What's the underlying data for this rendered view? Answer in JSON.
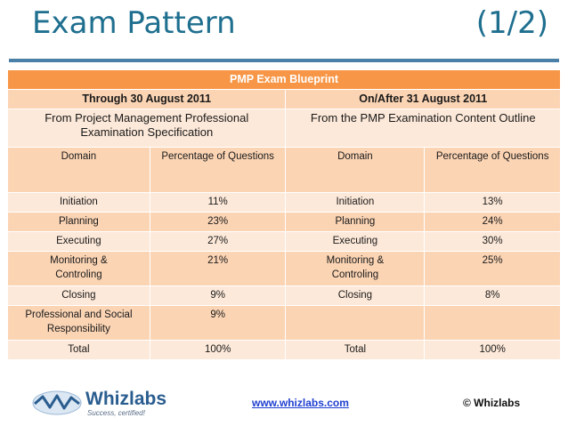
{
  "slide": {
    "title": "Exam Pattern",
    "page_indicator": "(1/2)"
  },
  "table": {
    "caption": "PMP Exam Blueprint",
    "periods": [
      "Through 30 August 2011",
      "On/After 31 August 2011"
    ],
    "sources": [
      "From Project Management Professional Examination Specification",
      "From the PMP Examination Content Outline"
    ],
    "headers": {
      "domain": "Domain",
      "percentage": "Percentage of Questions"
    },
    "rows": [
      {
        "old_domain": "Initiation",
        "old_pct": "11%",
        "new_domain": "Initiation",
        "new_pct": "13%"
      },
      {
        "old_domain": "Planning",
        "old_pct": "23%",
        "new_domain": "Planning",
        "new_pct": "24%"
      },
      {
        "old_domain": "Executing",
        "old_pct": "27%",
        "new_domain": "Executing",
        "new_pct": "30%"
      },
      {
        "old_domain": "Monitoring & Controling",
        "old_pct": "21%",
        "new_domain": "Monitoring & Controling",
        "new_pct": "25%"
      },
      {
        "old_domain": "Closing",
        "old_pct": "9%",
        "new_domain": "Closing",
        "new_pct": "8%"
      },
      {
        "old_domain": "Professional and Social Responsibility",
        "old_pct": "9%",
        "new_domain": "",
        "new_pct": ""
      },
      {
        "old_domain": "Total",
        "old_pct": "100%",
        "new_domain": "Total",
        "new_pct": "100%"
      }
    ]
  },
  "footer": {
    "logo_name": "Whizlabs",
    "logo_tagline": "Success, certified!",
    "url": "www.whizlabs.com",
    "copyright": "© Whizlabs"
  },
  "colors": {
    "title": "#1f6f8f",
    "header_orange": "#f79646",
    "light_peach": "#fde9d9",
    "mid_peach": "#fbd4b4"
  }
}
